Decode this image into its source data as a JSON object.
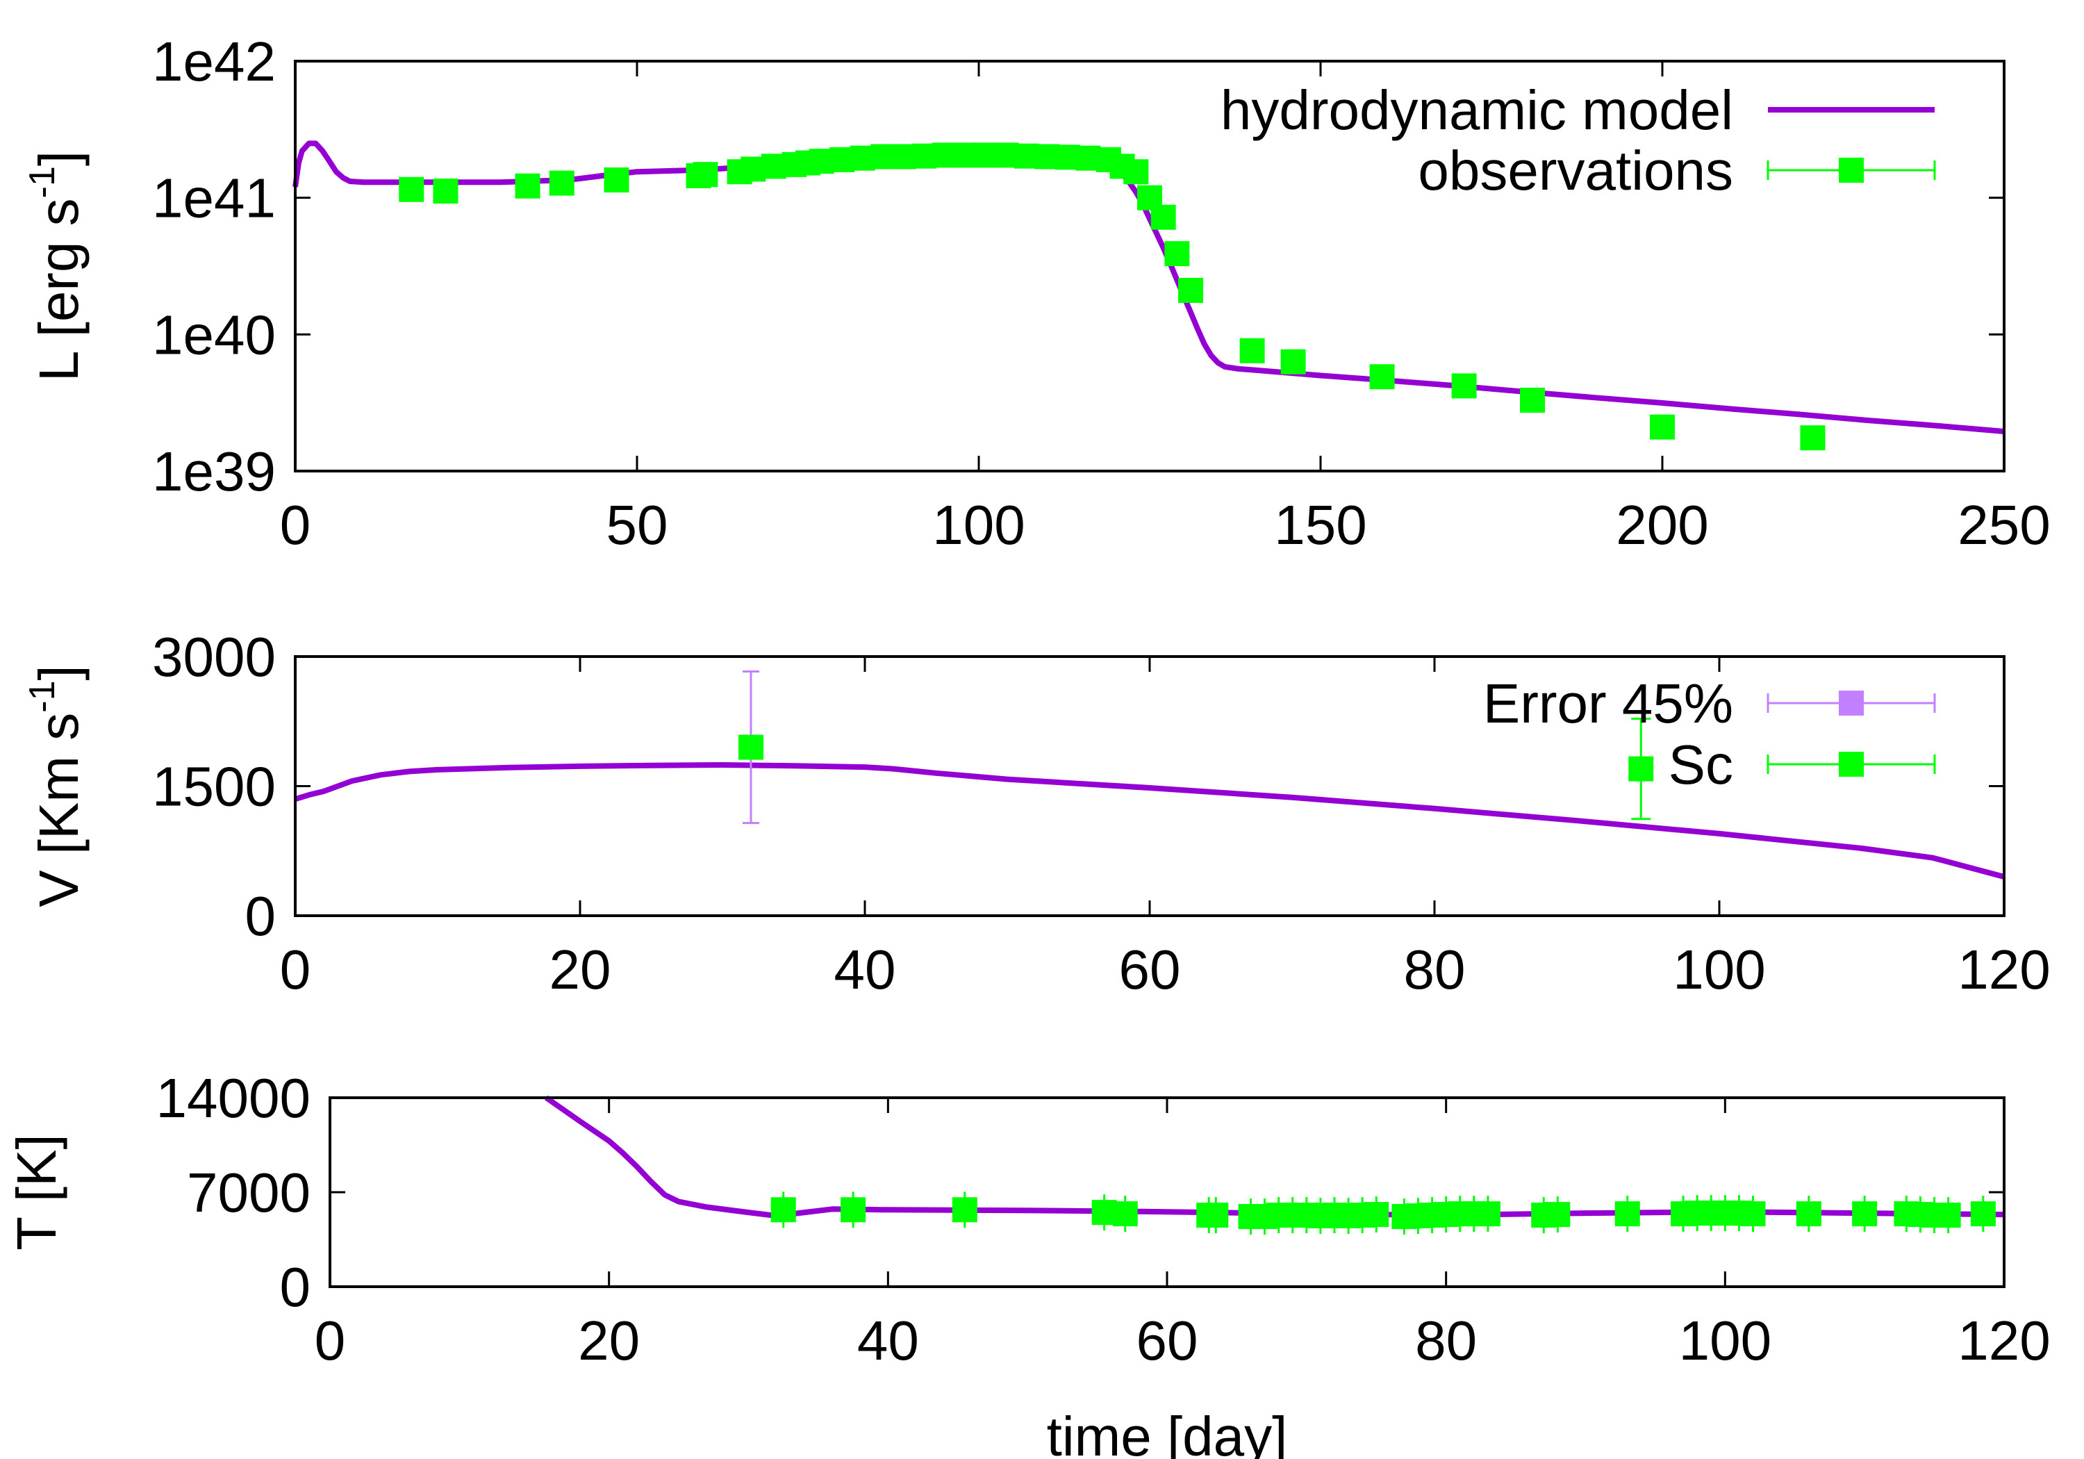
{
  "colors": {
    "model": "#9400d3",
    "obs": "#00ff00",
    "err": "#c080ff",
    "axis": "#000000"
  },
  "xlabel": "time [day]",
  "chart_data": [
    {
      "type": "line",
      "id": "lum",
      "ylabel": "L [erg s",
      "ylabel_sup": "-1",
      "ylabel_end": "]",
      "yscale": "log",
      "xlim": [
        0,
        250
      ],
      "ylim": [
        1e+39,
        1e+42
      ],
      "xticks": [
        0,
        50,
        100,
        150,
        200,
        250
      ],
      "xtick_labels": [
        "0",
        "50",
        "100",
        "150",
        "200",
        "250"
      ],
      "yticks": [
        1e+39,
        1e+40,
        1e+41,
        1e+42
      ],
      "ytick_labels": [
        "1e39",
        "1e40",
        "1e41",
        "1e42"
      ],
      "legend": {
        "position": "top-right",
        "model_label": "hydrodynamic model",
        "obs_label": "observations"
      },
      "model": {
        "name": "hydrodynamic model",
        "x": [
          0,
          0.5,
          1,
          2,
          3,
          4,
          5,
          6,
          7,
          8,
          10,
          15,
          20,
          30,
          40,
          45,
          50,
          60,
          70,
          80,
          90,
          100,
          110,
          115,
          118,
          120,
          121,
          122,
          123,
          124,
          125,
          126,
          127,
          128,
          129,
          130,
          131,
          132,
          133,
          134,
          135,
          136,
          138,
          140,
          150,
          160,
          170,
          180,
          190,
          200,
          210,
          220,
          230,
          240,
          250
        ],
        "y": [
          1.2e+41,
          1.8e+41,
          2.2e+41,
          2.5e+41,
          2.5e+41,
          2.2e+41,
          1.85e+41,
          1.55e+41,
          1.4e+41,
          1.32e+41,
          1.3e+41,
          1.3e+41,
          1.3e+41,
          1.3e+41,
          1.35e+41,
          1.45e+41,
          1.55e+41,
          1.6e+41,
          1.75e+41,
          1.9e+41,
          2e+41,
          2.05e+41,
          2e+41,
          1.95e+41,
          1.8e+41,
          1.65e+41,
          1.5e+41,
          1.3e+41,
          1.1e+41,
          9e+40,
          7e+40,
          5.5e+40,
          4.3e+40,
          3.3e+40,
          2.5e+40,
          1.9e+40,
          1.45e+40,
          1.1e+40,
          8.5e+39,
          7e+39,
          6.2e+39,
          5.8e+39,
          5.6e+39,
          5.5e+39,
          5e+39,
          4.6e+39,
          4.2e+39,
          3.8e+39,
          3.45e+39,
          3.15e+39,
          2.85e+39,
          2.6e+39,
          2.35e+39,
          2.15e+39,
          1.95e+39
        ]
      },
      "observations": {
        "name": "observations",
        "x": [
          17,
          22,
          34,
          39,
          47,
          59,
          60,
          65,
          67,
          70,
          73,
          75,
          77,
          80,
          83,
          86,
          89,
          92,
          95,
          98,
          101,
          104,
          107,
          110,
          113,
          116,
          119,
          121,
          123,
          125,
          127,
          129,
          131,
          140,
          146,
          159,
          171,
          181,
          200,
          222
        ],
        "y": [
          1.15e+41,
          1.12e+41,
          1.22e+41,
          1.28e+41,
          1.35e+41,
          1.45e+41,
          1.48e+41,
          1.55e+41,
          1.62e+41,
          1.7e+41,
          1.75e+41,
          1.8e+41,
          1.85e+41,
          1.9e+41,
          1.95e+41,
          2e+41,
          2e+41,
          2.02e+41,
          2.05e+41,
          2.05e+41,
          2.05e+41,
          2.05e+41,
          2.02e+41,
          2e+41,
          1.98e+41,
          1.95e+41,
          1.9e+41,
          1.7e+41,
          1.55e+41,
          1e+41,
          7.2e+40,
          3.9e+40,
          2.1e+40,
          7.6e+39,
          6.3e+39,
          4.9e+39,
          4.2e+39,
          3.3e+39,
          2.1e+39,
          1.75e+39
        ]
      }
    },
    {
      "type": "line",
      "id": "vel",
      "ylabel": "V [Km s",
      "ylabel_sup": "-1",
      "ylabel_end": "]",
      "yscale": "linear",
      "xlim": [
        0,
        120
      ],
      "ylim": [
        0,
        3000
      ],
      "xticks": [
        0,
        20,
        40,
        60,
        80,
        100,
        120
      ],
      "xtick_labels": [
        "0",
        "20",
        "40",
        "60",
        "80",
        "100",
        "120"
      ],
      "yticks": [
        0,
        1500,
        3000
      ],
      "ytick_labels": [
        "0",
        "1500",
        "3000"
      ],
      "legend": {
        "position": "top-right",
        "err_label": "Error 45%",
        "obs_label": "Sc"
      },
      "model": {
        "x": [
          0,
          1,
          2,
          3,
          4,
          6,
          8,
          10,
          15,
          20,
          25,
          30,
          35,
          40,
          42,
          45,
          50,
          60,
          70,
          80,
          90,
          100,
          110,
          115,
          120
        ],
        "y": [
          1350,
          1400,
          1440,
          1500,
          1560,
          1630,
          1670,
          1690,
          1715,
          1730,
          1740,
          1745,
          1735,
          1720,
          1700,
          1650,
          1580,
          1480,
          1370,
          1240,
          1100,
          950,
          780,
          670,
          450
        ]
      },
      "error_points": {
        "name": "Error 45%",
        "x": [
          32
        ],
        "y": [
          1950
        ],
        "yerr": [
          877
        ]
      },
      "observations": {
        "name": "Sc",
        "x": [
          32,
          94.5
        ],
        "y": [
          1950,
          1700
        ],
        "yerr": [
          0,
          580
        ]
      }
    },
    {
      "type": "line",
      "id": "temp",
      "ylabel": "T [K]",
      "yscale": "linear",
      "xlim": [
        0,
        120
      ],
      "ylim": [
        0,
        14000
      ],
      "xticks": [
        0,
        20,
        40,
        60,
        80,
        100,
        120
      ],
      "xtick_labels": [
        "0",
        "20",
        "40",
        "60",
        "80",
        "100",
        "120"
      ],
      "yticks": [
        0,
        7000,
        14000
      ],
      "ytick_labels": [
        "0",
        "7000",
        "14000"
      ],
      "model": {
        "x": [
          15.5,
          18,
          20,
          21,
          22,
          23,
          24,
          25,
          27,
          30,
          32,
          34,
          36,
          40,
          50,
          60,
          70,
          80,
          90,
          100,
          110,
          120
        ],
        "y": [
          14000,
          12200,
          10800,
          9900,
          8900,
          7800,
          6800,
          6300,
          5900,
          5500,
          5250,
          5500,
          5750,
          5700,
          5650,
          5550,
          5400,
          5300,
          5450,
          5550,
          5450,
          5350
        ]
      },
      "observations": {
        "x": [
          32.5,
          37.5,
          45.5,
          55.5,
          57,
          63,
          63.5,
          66,
          67,
          68,
          69,
          70,
          71,
          72,
          73,
          74,
          75,
          77,
          78,
          79,
          80,
          81,
          82,
          83,
          87,
          88,
          93,
          97,
          98,
          99,
          100,
          101,
          102,
          106,
          110,
          113,
          114,
          115,
          116,
          118.5
        ],
        "y": [
          5700,
          5700,
          5700,
          5500,
          5400,
          5300,
          5300,
          5200,
          5200,
          5300,
          5300,
          5300,
          5250,
          5300,
          5250,
          5300,
          5350,
          5200,
          5250,
          5300,
          5350,
          5400,
          5400,
          5400,
          5300,
          5350,
          5400,
          5400,
          5450,
          5450,
          5450,
          5450,
          5400,
          5400,
          5400,
          5400,
          5350,
          5300,
          5300,
          5400
        ]
      }
    }
  ]
}
